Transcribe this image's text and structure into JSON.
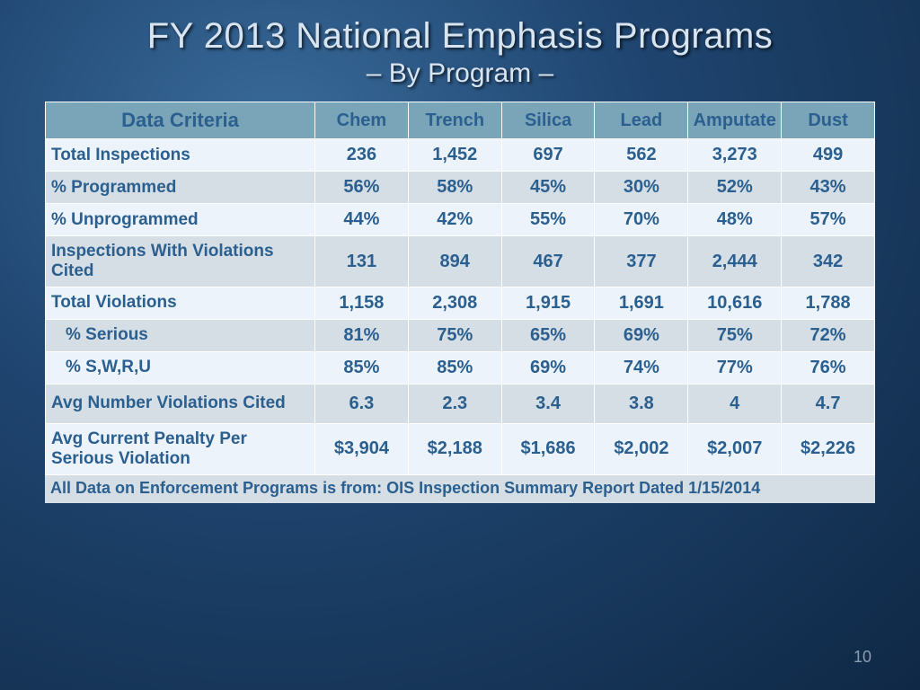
{
  "title": {
    "main": "FY 2013 National Emphasis Programs",
    "sub": "– By Program –"
  },
  "table": {
    "header_bg": "#7aa5b8",
    "row_light_bg": "#ecf3fa",
    "row_dark_bg": "#d4dee4",
    "text_color": "#2b5f8f",
    "columns": [
      "Data Criteria",
      "Chem",
      "Trench",
      "Silica",
      "Lead",
      "Amputate",
      "Dust"
    ],
    "rows": [
      {
        "label": "Total Inspections",
        "indent": false,
        "values": [
          "236",
          "1,452",
          "697",
          "562",
          "3,273",
          "499"
        ]
      },
      {
        "label": "% Programmed",
        "indent": false,
        "values": [
          "56%",
          "58%",
          "45%",
          "30%",
          "52%",
          "43%"
        ]
      },
      {
        "label": "% Unprogrammed",
        "indent": false,
        "values": [
          "44%",
          "42%",
          "55%",
          "70%",
          "48%",
          "57%"
        ]
      },
      {
        "label": "Inspections With Violations Cited",
        "indent": false,
        "values": [
          "131",
          "894",
          "467",
          "377",
          "2,444",
          "342"
        ]
      },
      {
        "label": "Total Violations",
        "indent": false,
        "values": [
          "1,158",
          "2,308",
          "1,915",
          "1,691",
          "10,616",
          "1,788"
        ]
      },
      {
        "label": "% Serious",
        "indent": true,
        "values": [
          "81%",
          "75%",
          "65%",
          "69%",
          "75%",
          "72%"
        ]
      },
      {
        "label": "% S,W,R,U",
        "indent": true,
        "values": [
          "85%",
          "85%",
          "69%",
          "74%",
          "77%",
          "76%"
        ]
      },
      {
        "label": "Avg Number Violations Cited",
        "indent": false,
        "values": [
          "6.3",
          "2.3",
          "3.4",
          "3.8",
          "4",
          "4.7"
        ]
      },
      {
        "label": "Avg Current Penalty Per Serious Violation",
        "indent": false,
        "values": [
          "$3,904",
          "$2,188",
          "$1,686",
          "$2,002",
          "$2,007",
          "$2,226"
        ]
      }
    ]
  },
  "footnote": "All Data on Enforcement Programs is from:  OIS Inspection Summary Report Dated 1/15/2014",
  "page_number": "10"
}
